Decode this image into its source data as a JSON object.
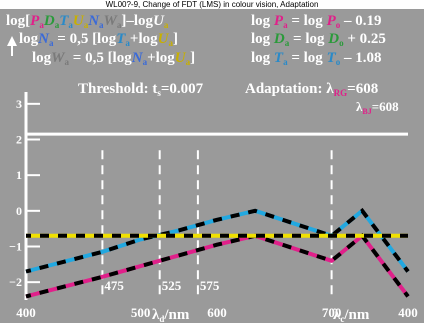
{
  "page_title": "WL00?-9, Change of FDT (LMS) in colour vision, Adaptation",
  "colors": {
    "background": "#9a9a9a",
    "text": "#ffffff",
    "P": "#e0208a",
    "D": "#2a9a3a",
    "T": "#2a8ac8",
    "U": "#c8b000",
    "N": "#3a6ad8",
    "W": "#7a7a7a",
    "cyan_series": "#22a8e0",
    "magenta_series": "#e0208a",
    "threshold_line": "#f0e000",
    "dash": "#000000"
  },
  "labels": {
    "line1_left": {
      "a": "log[",
      "P": "P",
      "p_sub": "a",
      "D": "D",
      "d_sub": "a",
      "T": "T",
      "t_sub": "a",
      "U": "U",
      "u_sub": "a",
      "N": "N",
      "n_sub": "a",
      "W": "W",
      "w_sub": "a",
      "b": "]–log",
      "U2": "U",
      "u2_sub": "a"
    },
    "line2_left": {
      "a": "log",
      "N": "N",
      "n_sub": "a",
      "b": " = 0,5 [log",
      "T": "T",
      "t_sub": "a",
      "c": "+log",
      "U": "U",
      "u_sub": "a",
      "d": "]"
    },
    "line3_left": {
      "a": "log",
      "W": "W",
      "w_sub": "a",
      "b": " = 0,5 [log",
      "N": "N",
      "n_sub": "a",
      "c": "+log",
      "U": "U",
      "u_sub": "a",
      "d": "]"
    },
    "line1_right": {
      "a": "log ",
      "P": "P",
      "p_sub": "a",
      "b": " = log ",
      "P2": "P",
      "p2_sub": "o",
      "c": " – 0.19"
    },
    "line2_right": {
      "a": "log ",
      "D": "D",
      "d_sub": "a",
      "b": " = log ",
      "D2": "D",
      "d2_sub": "o",
      "c": " + 0.25"
    },
    "line3_right": {
      "a": "log ",
      "T": "T",
      "t_sub": "a",
      "b": " = log ",
      "T2": "T",
      "t2_sub": "o",
      "c": " – 1.08"
    },
    "threshold": {
      "a": "Threshold: t",
      "sub": "s",
      "b": "=0.007"
    },
    "adaptation": {
      "a": "Adaptation: λ",
      "sub": "RG",
      "b": "=608"
    },
    "adaptation2": {
      "a": "λ",
      "sub": "BJ",
      "b": "=608"
    },
    "xlabel_d": {
      "a": "λ",
      "sub": "d",
      "b": "/nm"
    },
    "xlabel_c": {
      "a": "λ",
      "sub": "c",
      "b": "/nm"
    }
  },
  "chart_data": {
    "type": "line",
    "ylim": [
      -2.5,
      3.5
    ],
    "yticks": [
      {
        "value": 3,
        "label": "3"
      },
      {
        "value": 2,
        "label": "2"
      },
      {
        "value": 1,
        "label": "1"
      },
      {
        "value": 0,
        "label": "0"
      },
      {
        "value": -1,
        "label": "−1"
      },
      {
        "value": -2,
        "label": "−2"
      }
    ],
    "x_index_range": [
      0,
      10
    ],
    "xticks_bottom": [
      {
        "index": 0,
        "label": "400"
      },
      {
        "index": 3,
        "label": "500"
      },
      {
        "index": 5,
        "label": "600"
      },
      {
        "index": 8,
        "label": "700"
      },
      {
        "index": 10,
        "label": "400"
      }
    ],
    "xticks_inner": [
      {
        "index": 2,
        "label": "475"
      },
      {
        "index": 3.5,
        "label": "525"
      },
      {
        "index": 4.5,
        "label": "575"
      }
    ],
    "reference_line_y": 2.15,
    "dashed_verticals": [
      2,
      3.5,
      4.5,
      8
    ],
    "series": [
      {
        "color": "cyan",
        "points": [
          [
            0,
            -1.7
          ],
          [
            2,
            -1.15
          ],
          [
            3,
            -0.8
          ],
          [
            4,
            -0.55
          ],
          [
            5,
            -0.25
          ],
          [
            6,
            0.0
          ],
          [
            8,
            -0.7
          ],
          [
            8.8,
            0.0
          ],
          [
            10,
            -1.7
          ]
        ]
      },
      {
        "color": "magenta",
        "points": [
          [
            0,
            -2.4
          ],
          [
            2,
            -1.85
          ],
          [
            3,
            -1.55
          ],
          [
            4,
            -1.25
          ],
          [
            5,
            -0.95
          ],
          [
            6,
            -0.7
          ],
          [
            8,
            -1.4
          ],
          [
            8.8,
            -0.7
          ],
          [
            10,
            -2.4
          ]
        ]
      },
      {
        "color": "yellow",
        "points": [
          [
            0,
            -0.7
          ],
          [
            10,
            -0.7
          ]
        ]
      }
    ]
  }
}
